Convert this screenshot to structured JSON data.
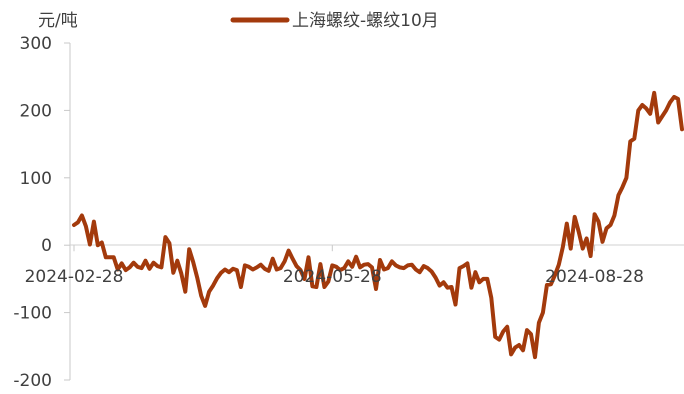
{
  "chart_data": {
    "type": "line",
    "unit_label": "元/吨",
    "legend_position": "top",
    "ylim": [
      -200,
      300
    ],
    "y_ticks": [
      {
        "value": 300,
        "label": "300"
      },
      {
        "value": 200,
        "label": "200"
      },
      {
        "value": 100,
        "label": "100"
      },
      {
        "value": 0,
        "label": "0"
      },
      {
        "value": -100,
        "label": "-100"
      },
      {
        "value": -200,
        "label": "-200"
      }
    ],
    "x_ticks": [
      {
        "label": "2024-02-28",
        "index": 0
      },
      {
        "label": "2024-05-28",
        "index": 65
      },
      {
        "label": "2024-08-28",
        "index": 131
      }
    ],
    "series": [
      {
        "name": "上海螺纹-螺纹10月",
        "color": "#a33a0c",
        "values": [
          30,
          34,
          44,
          28,
          1,
          35,
          0,
          4,
          -18,
          -18,
          -18,
          -36,
          -27,
          -37,
          -33,
          -26,
          -32,
          -34,
          -23,
          -35,
          -26,
          -31,
          -33,
          12,
          3,
          -41,
          -23,
          -42,
          -69,
          -6,
          -25,
          -48,
          -75,
          -90,
          -69,
          -60,
          -49,
          -41,
          -36,
          -40,
          -35,
          -37,
          -62,
          -30,
          -32,
          -36,
          -33,
          -29,
          -35,
          -38,
          -20,
          -36,
          -34,
          -24,
          -8,
          -20,
          -31,
          -37,
          -50,
          -18,
          -61,
          -62,
          -28,
          -62,
          -54,
          -30,
          -32,
          -37,
          -34,
          -24,
          -32,
          -17,
          -33,
          -29,
          -28,
          -33,
          -65,
          -22,
          -36,
          -34,
          -24,
          -30,
          -33,
          -34,
          -30,
          -29,
          -36,
          -40,
          -31,
          -34,
          -39,
          -48,
          -60,
          -55,
          -63,
          -62,
          -88,
          -34,
          -31,
          -27,
          -63,
          -40,
          -55,
          -50,
          -50,
          -78,
          -136,
          -140,
          -128,
          -121,
          -162,
          -152,
          -148,
          -156,
          -126,
          -132,
          -166,
          -115,
          -100,
          -59,
          -58,
          -45,
          -29,
          -3,
          32,
          -5,
          42,
          20,
          -5,
          10,
          -16,
          46,
          35,
          5,
          25,
          30,
          44,
          74,
          86,
          100,
          154,
          158,
          200,
          208,
          203,
          195,
          226,
          182,
          191,
          200,
          212,
          220,
          217,
          172
        ]
      }
    ]
  }
}
